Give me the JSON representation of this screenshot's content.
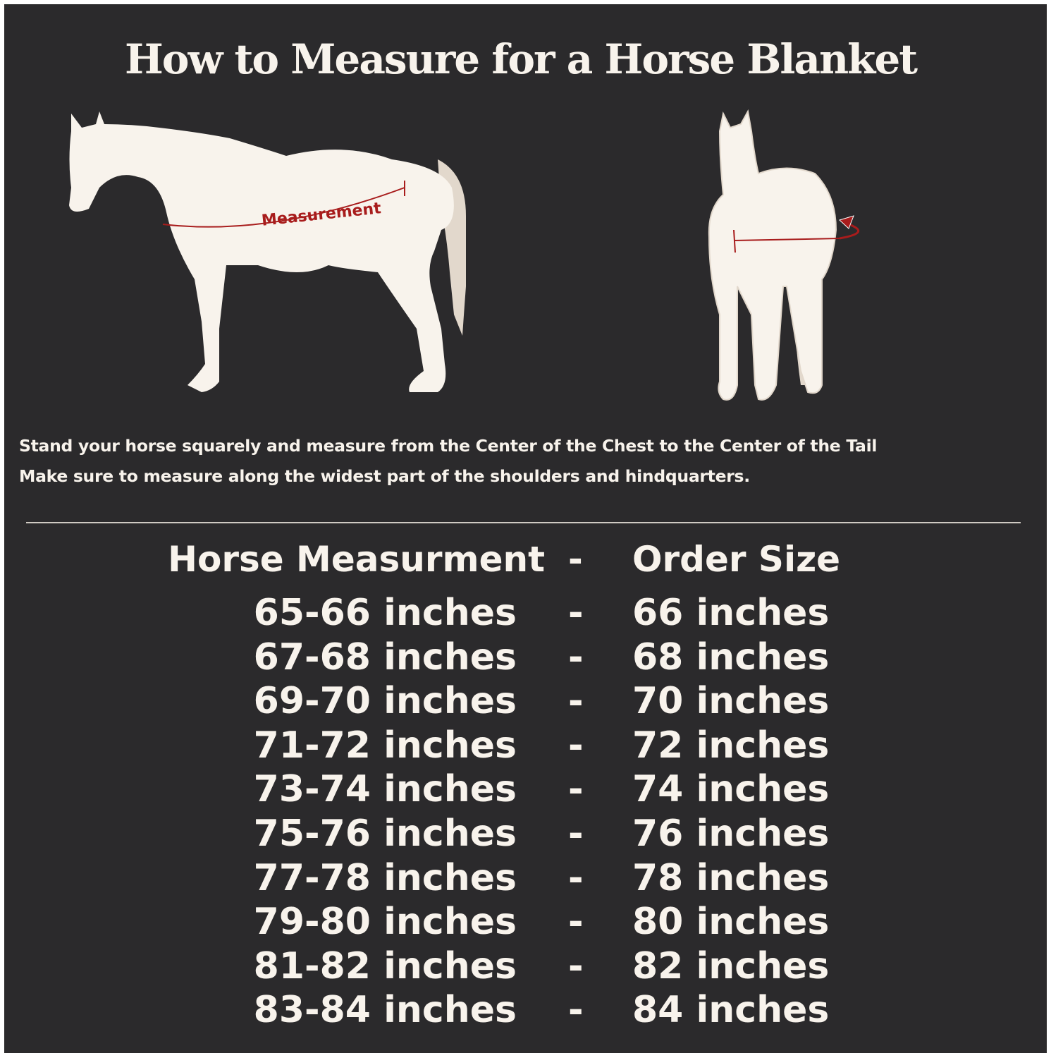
{
  "title": "How to Measure for a Horse Blanket",
  "illustration": {
    "measurement_label": "Measurement",
    "colors": {
      "background": "#2b2a2c",
      "horse": "#f8f3ec",
      "tail": "#e2d8cc",
      "accent": "#a81c1c"
    }
  },
  "instructions": [
    "Stand your horse squarely and measure from the Center of the Chest to the Center of the Tail",
    "Make sure to measure along the widest part of the shoulders and hindquarters."
  ],
  "table": {
    "headers": {
      "measurement": "Horse Measurment",
      "separator": "-",
      "size": "Order Size"
    },
    "rows": [
      {
        "measurement": "65-66 inches",
        "separator": "-",
        "size": "66 inches"
      },
      {
        "measurement": "67-68 inches",
        "separator": "-",
        "size": "68 inches"
      },
      {
        "measurement": "69-70 inches",
        "separator": "-",
        "size": "70 inches"
      },
      {
        "measurement": "71-72 inches",
        "separator": "-",
        "size": "72 inches"
      },
      {
        "measurement": "73-74 inches",
        "separator": "-",
        "size": "74 inches"
      },
      {
        "measurement": "75-76 inches",
        "separator": "-",
        "size": "76 inches"
      },
      {
        "measurement": "77-78 inches",
        "separator": "-",
        "size": "78 inches"
      },
      {
        "measurement": "79-80 inches",
        "separator": "-",
        "size": "80 inches"
      },
      {
        "measurement": "81-82 inches",
        "separator": "-",
        "size": "82 inches"
      },
      {
        "measurement": "83-84 inches",
        "separator": "-",
        "size": "84 inches"
      }
    ]
  }
}
